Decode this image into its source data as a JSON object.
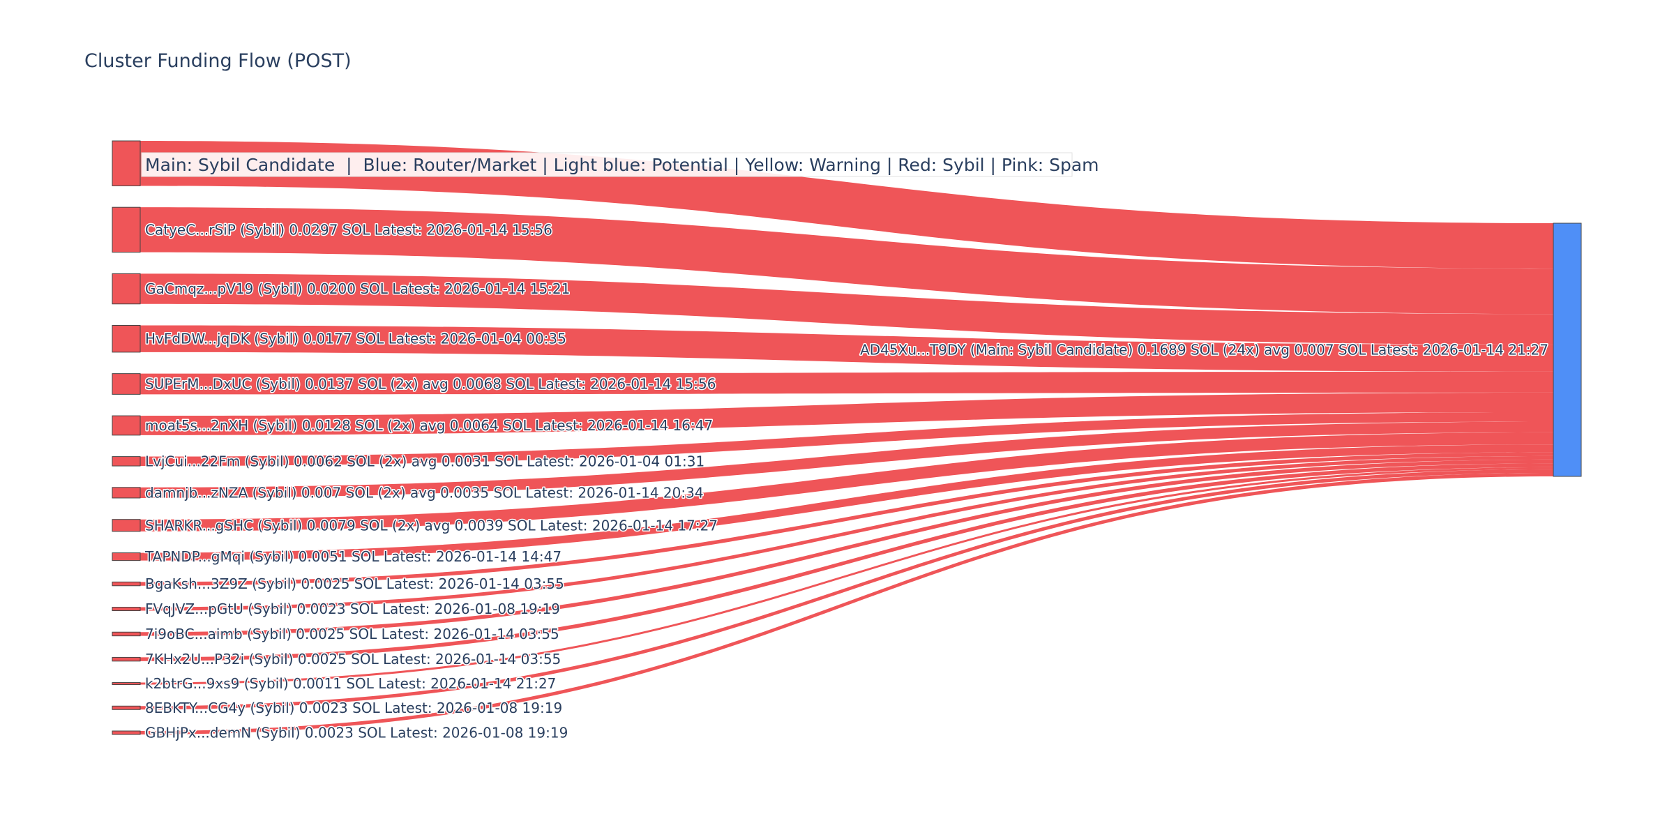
{
  "chart_data": {
    "type": "sankey",
    "title": "Cluster Funding Flow (POST)",
    "legend": "Main: Sybil Candidate  |  Blue: Router/Market | Light blue: Potential | Yellow: Warning | Red: Sybil | Pink: Spam",
    "target": {
      "label": "AD45Xu...T9DY (Main: Sybil Candidate) 0.1689 SOL (24x) avg 0.007 SOL Latest: 2026-01-14 21:27",
      "value": 0.1689,
      "color": "#4f8ff7"
    },
    "link_color": "#ef5558",
    "source_color": "#ef5558",
    "sources": [
      {
        "label": "",
        "value": 0.0297
      },
      {
        "label": "CatyeC...rSiP (Sybil) 0.0297 SOL Latest: 2026-01-14 15:56",
        "value": 0.0297
      },
      {
        "label": "GaCmqz...pV19 (Sybil) 0.0200 SOL Latest: 2026-01-14 15:21",
        "value": 0.02
      },
      {
        "label": "HvFdDW...jqDK (Sybil) 0.0177 SOL Latest: 2026-01-04 00:35",
        "value": 0.0177
      },
      {
        "label": "SUPErM...DxUC (Sybil) 0.0137 SOL (2x) avg 0.0068 SOL Latest: 2026-01-14 15:56",
        "value": 0.0137
      },
      {
        "label": "moat5s...2nXH (Sybil) 0.0128 SOL (2x) avg 0.0064 SOL Latest: 2026-01-14 16:47",
        "value": 0.0128
      },
      {
        "label": "LvjCui...22Fm (Sybil) 0.0062 SOL (2x) avg 0.0031 SOL Latest: 2026-01-04 01:31",
        "value": 0.0062
      },
      {
        "label": "damnjb...zNZA (Sybil) 0.007 SOL (2x) avg 0.0035 SOL Latest: 2026-01-14 20:34",
        "value": 0.007
      },
      {
        "label": "SHARKR...gSHC (Sybil) 0.0079 SOL (2x) avg 0.0039 SOL Latest: 2026-01-14 17:27",
        "value": 0.0079
      },
      {
        "label": "TAPNDP...gMqi (Sybil) 0.0051 SOL Latest: 2026-01-14 14:47",
        "value": 0.0051
      },
      {
        "label": "BgaKsh...3Z9Z (Sybil) 0.0025 SOL Latest: 2026-01-14 03:55",
        "value": 0.0025
      },
      {
        "label": "FVqJVZ...pGtU (Sybil) 0.0023 SOL Latest: 2026-01-08 19:19",
        "value": 0.0023
      },
      {
        "label": "7i9oBC...aimb (Sybil) 0.0025 SOL Latest: 2026-01-14 03:55",
        "value": 0.0025
      },
      {
        "label": "7KHx2U...P32i (Sybil) 0.0025 SOL Latest: 2026-01-14 03:55",
        "value": 0.0025
      },
      {
        "label": "k2btrG...9xs9 (Sybil) 0.0011 SOL Latest: 2026-01-14 21:27",
        "value": 0.0011
      },
      {
        "label": "8EBKTY...CG4y (Sybil) 0.0023 SOL Latest: 2026-01-08 19:19",
        "value": 0.0023
      },
      {
        "label": "GBHjPx...demN (Sybil) 0.0023 SOL Latest: 2026-01-08 19:19",
        "value": 0.0023
      }
    ]
  }
}
